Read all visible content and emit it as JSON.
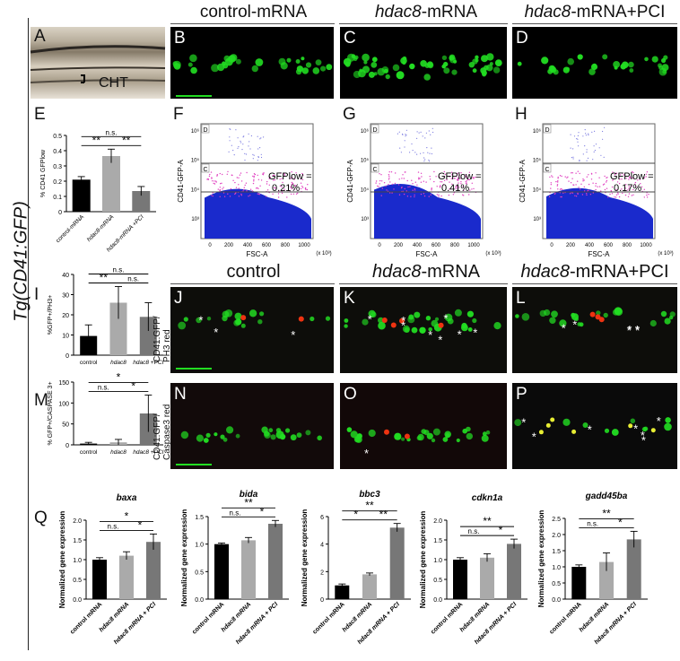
{
  "side_title": "Tg(CD41:GFP)",
  "panel_letters": {
    "A": "A",
    "B": "B",
    "C": "C",
    "D": "D",
    "E": "E",
    "F": "F",
    "G": "G",
    "H": "H",
    "I": "I",
    "J": "J",
    "K": "K",
    "L": "L",
    "M": "M",
    "N": "N",
    "O": "O",
    "P": "P",
    "Q": "Q"
  },
  "headers_top": {
    "control": "control-mRNA",
    "hdac8_italic": "hdac8",
    "hdac8_suffix": "-mRNA",
    "pci_italic": "hdac8",
    "pci_suffix": "-mRNA+PCI"
  },
  "headers_mid": {
    "control": "control",
    "hdac8_italic": "hdac8",
    "hdac8_suffix": "-mRNA",
    "pci_italic": "hdac8",
    "pci_suffix": "-mRNA+PCI"
  },
  "cht_label": "CHT",
  "row_label_ph3": "CD41:GFP/\nPH3 red",
  "row_label_ph3_l1": "CD41:GFP/",
  "row_label_ph3_l2": "PH3 red",
  "row_label_casp_l1": "CD41:GFP/",
  "row_label_casp_l2": "Caspase3 red",
  "flow": {
    "gate_d": "D",
    "gate_c": "C",
    "xlabel": "FSC-A",
    "ylabel": "CD41-GFP-A",
    "xunit": "(x 10³)",
    "gfp_low_label": "GFPlow =",
    "values": [
      "0.21%",
      "0.41%",
      "0.17%"
    ],
    "xticks": [
      "0",
      "200",
      "400",
      "600",
      "800",
      "1000"
    ],
    "yticks": [
      "10³",
      "10⁴",
      "10⁵",
      "10⁶"
    ]
  },
  "chart_data": [
    {
      "type": "bar",
      "panel": "E",
      "ylabel": "% CD41 GFPlow",
      "categories": [
        "control-mRNA",
        "hdac8-mRNA",
        "hdac8-mRNA +PCI"
      ],
      "values": [
        0.21,
        0.365,
        0.135
      ],
      "errors": [
        0.02,
        0.045,
        0.03
      ],
      "ylim": [
        0,
        0.5
      ],
      "yticks": [
        "0",
        "0.1",
        "0.2",
        "0.3",
        "0.4",
        "0.5"
      ],
      "colors": [
        "#000000",
        "#aaaaaa",
        "#777777"
      ],
      "significance": [
        "n.s.",
        "**",
        "**"
      ]
    },
    {
      "type": "bar",
      "panel": "I",
      "ylabel": "%GFP+/PH3+",
      "categories": [
        "control",
        "hdac8",
        "hdac8 +PCI"
      ],
      "values": [
        9.5,
        26,
        19
      ],
      "errors": [
        5.5,
        8,
        7
      ],
      "ylim": [
        0,
        40
      ],
      "yticks": [
        "0",
        "10",
        "20",
        "30",
        "40"
      ],
      "colors": [
        "#000000",
        "#aaaaaa",
        "#777777"
      ],
      "significance": [
        "n.s.",
        "**",
        "n.s."
      ]
    },
    {
      "type": "bar",
      "panel": "M",
      "ylabel": "% GFP+/CASPASE 3+",
      "categories": [
        "control",
        "hdac8",
        "hdac8 +PCI"
      ],
      "values": [
        3,
        6,
        75
      ],
      "errors": [
        3,
        7,
        44
      ],
      "ylim": [
        0,
        150
      ],
      "yticks": [
        "0",
        "50",
        "100",
        "150"
      ],
      "colors": [
        "#000000",
        "#aaaaaa",
        "#777777"
      ],
      "significance": [
        "*",
        "n.s.",
        "*"
      ]
    },
    {
      "type": "bar",
      "panel": "Q-baxa",
      "title": "baxa",
      "ylabel": "Normalized gene expression",
      "categories": [
        "control mRNA",
        "hdac8 mRNA",
        "hdac8 mRNA + PCI"
      ],
      "values": [
        1.0,
        1.1,
        1.45
      ],
      "errors": [
        0.05,
        0.1,
        0.2
      ],
      "ylim": [
        0,
        2.0
      ],
      "yticks": [
        "0.0",
        "0.5",
        "1.0",
        "1.5",
        "2.0"
      ],
      "colors": [
        "#000000",
        "#aaaaaa",
        "#777777"
      ],
      "significance": [
        "*",
        "n.s.",
        "*"
      ]
    },
    {
      "type": "bar",
      "panel": "Q-bida",
      "title": "bida",
      "ylabel": "Normalized gene expression",
      "categories": [
        "control mRNA",
        "hdac8 mRNA",
        "hdac8 mRNA + PCI"
      ],
      "values": [
        1.0,
        1.07,
        1.37
      ],
      "errors": [
        0.02,
        0.05,
        0.06
      ],
      "ylim": [
        0,
        1.5
      ],
      "yticks": [
        "0.0",
        "0.5",
        "1.0",
        "1.5"
      ],
      "colors": [
        "#000000",
        "#aaaaaa",
        "#777777"
      ],
      "significance": [
        "**",
        "n.s.",
        "*"
      ]
    },
    {
      "type": "bar",
      "panel": "Q-bbc3",
      "title": "bbc3",
      "ylabel": "Normalized gene expression",
      "categories": [
        "control mRNA",
        "hdac8 mRNA",
        "hdac8 mRNA + PCI"
      ],
      "values": [
        1.0,
        1.8,
        5.2
      ],
      "errors": [
        0.1,
        0.1,
        0.3
      ],
      "ylim": [
        0,
        6
      ],
      "yticks": [
        "0",
        "2",
        "4",
        "6"
      ],
      "colors": [
        "#000000",
        "#aaaaaa",
        "#777777"
      ],
      "significance": [
        "**",
        "*",
        "**"
      ]
    },
    {
      "type": "bar",
      "panel": "Q-cdkn1a",
      "title": "cdkn1a",
      "ylabel": "Normalized gene expression",
      "categories": [
        "control mRNA",
        "hdac8 mRNA",
        "hdac8 mRNA + PCI"
      ],
      "values": [
        1.0,
        1.05,
        1.4
      ],
      "errors": [
        0.05,
        0.1,
        0.12
      ],
      "ylim": [
        0,
        2.0
      ],
      "yticks": [
        "0.0",
        "0.5",
        "1.0",
        "1.5",
        "2.0"
      ],
      "colors": [
        "#000000",
        "#aaaaaa",
        "#777777"
      ],
      "significance": [
        "**",
        "n.s.",
        "*"
      ]
    },
    {
      "type": "bar",
      "panel": "Q-gadd45ba",
      "title": "gadd45ba",
      "ylabel": "Normalized gene expression",
      "categories": [
        "control mRNA",
        "hdac8 mRNA",
        "hdac8 mRNA + PCI"
      ],
      "values": [
        1.0,
        1.15,
        1.85
      ],
      "errors": [
        0.06,
        0.28,
        0.25
      ],
      "ylim": [
        0,
        2.5
      ],
      "yticks": [
        "0.0",
        "0.5",
        "1.0",
        "1.5",
        "2.0",
        "2.5"
      ],
      "colors": [
        "#000000",
        "#aaaaaa",
        "#777777"
      ],
      "significance": [
        "**",
        "n.s.",
        "*"
      ]
    }
  ],
  "colors": {
    "gfp": "#22dd22",
    "red": "#ee3311",
    "density": "#1a2acc",
    "magenta": "#e040c0"
  }
}
